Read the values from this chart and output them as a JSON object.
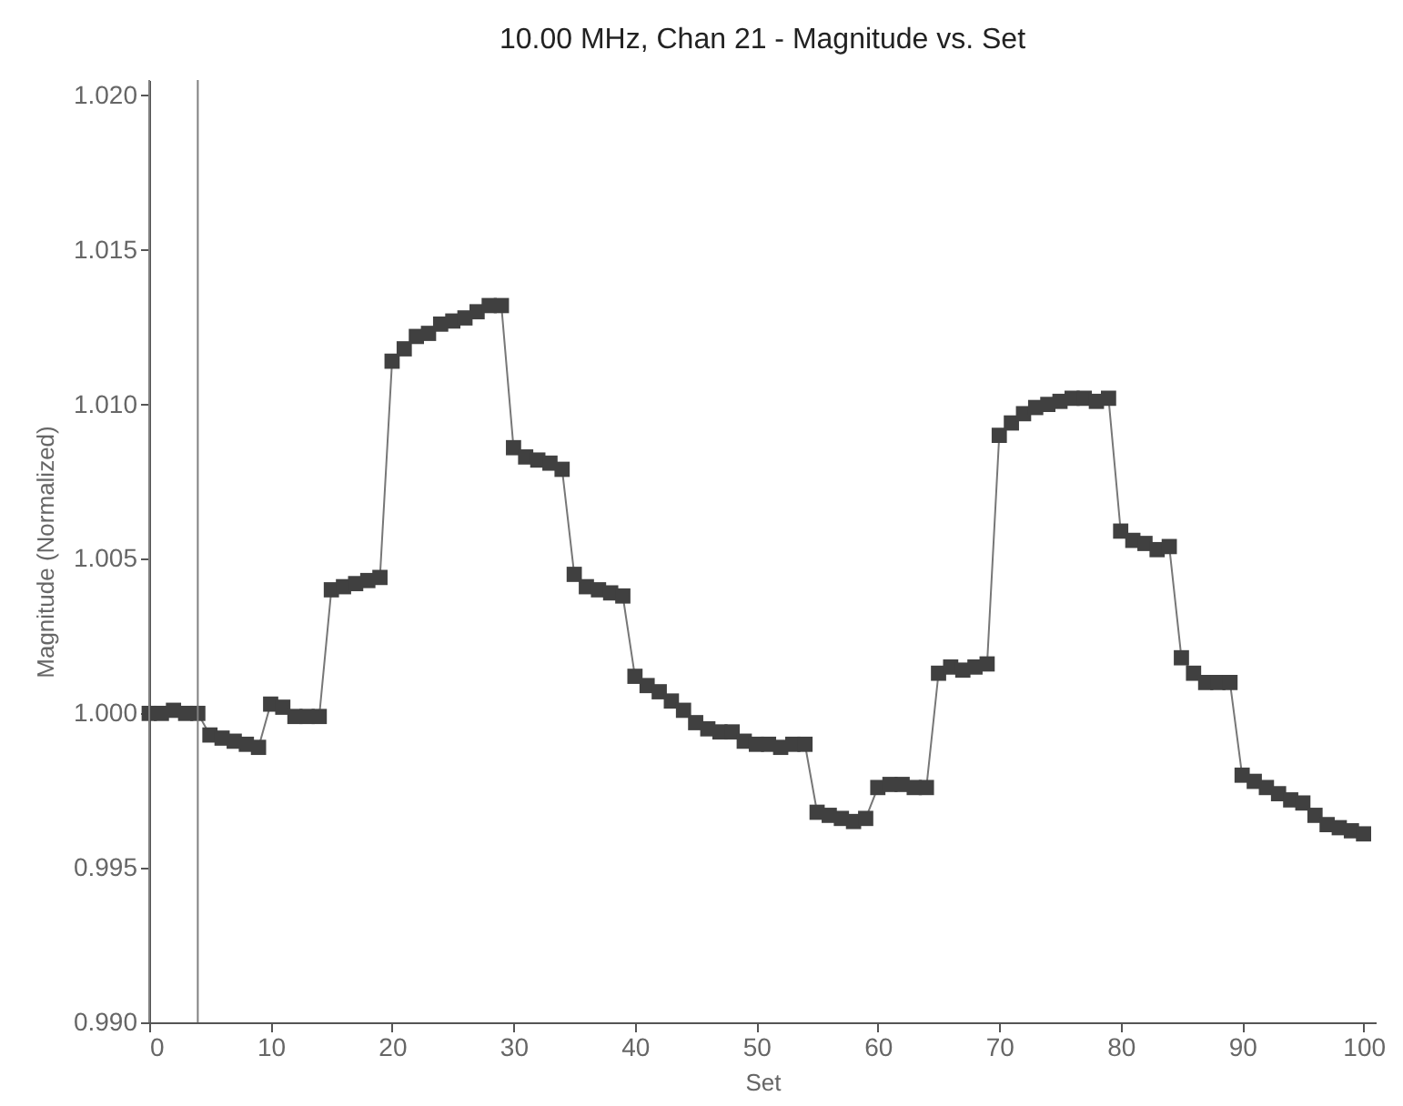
{
  "chart_data": {
    "type": "line",
    "title": "10.00 MHz, Chan 21 - Magnitude vs. Set",
    "xlabel": "Set",
    "ylabel": "Magnitude (Normalized)",
    "x": [
      0,
      1,
      2,
      3,
      4,
      5,
      6,
      7,
      8,
      9,
      10,
      11,
      12,
      13,
      14,
      15,
      16,
      17,
      18,
      19,
      20,
      21,
      22,
      23,
      24,
      25,
      26,
      27,
      28,
      29,
      30,
      31,
      32,
      33,
      34,
      35,
      36,
      37,
      38,
      39,
      40,
      41,
      42,
      43,
      44,
      45,
      46,
      47,
      48,
      49,
      50,
      51,
      52,
      53,
      54,
      55,
      56,
      57,
      58,
      59,
      60,
      61,
      62,
      63,
      64,
      65,
      66,
      67,
      68,
      69,
      70,
      71,
      72,
      73,
      74,
      75,
      76,
      77,
      78,
      79,
      80,
      81,
      82,
      83,
      84,
      85,
      86,
      87,
      88,
      89,
      90,
      91,
      92,
      93,
      94,
      95,
      96,
      97,
      98,
      99,
      100
    ],
    "series": [
      {
        "color": "#404040",
        "values": [
          1.0,
          1.0,
          1.0001,
          1.0,
          1.0,
          0.9993,
          0.9992,
          0.9991,
          0.999,
          0.9989,
          1.0003,
          1.0002,
          0.9999,
          0.9999,
          0.9999,
          1.004,
          1.0041,
          1.0042,
          1.0043,
          1.0044,
          1.0114,
          1.0118,
          1.0122,
          1.0123,
          1.0126,
          1.0127,
          1.0128,
          1.013,
          1.0132,
          1.0132,
          1.0086,
          1.0083,
          1.0082,
          1.0081,
          1.0079,
          1.0045,
          1.0041,
          1.004,
          1.0039,
          1.0038,
          1.0012,
          1.0009,
          1.0007,
          1.0004,
          1.0001,
          0.9997,
          0.9995,
          0.9994,
          0.9994,
          0.9991,
          0.999,
          0.999,
          0.9989,
          0.999,
          0.999,
          0.9968,
          0.9967,
          0.9966,
          0.9965,
          0.9966,
          0.9976,
          0.9977,
          0.9977,
          0.9976,
          0.9976,
          1.0013,
          1.0015,
          1.0014,
          1.0015,
          1.0016,
          1.009,
          1.0094,
          1.0097,
          1.0099,
          1.01,
          1.0101,
          1.0102,
          1.0102,
          1.0101,
          1.0102,
          1.0059,
          1.0056,
          1.0055,
          1.0053,
          1.0054,
          1.0018,
          1.0013,
          1.001,
          1.001,
          1.001,
          0.998,
          0.9978,
          0.9976,
          0.9974,
          0.9972,
          0.9971,
          0.9967,
          0.9964,
          0.9963,
          0.9962,
          0.9961
        ]
      }
    ],
    "xlim": [
      0,
      101
    ],
    "xticks": [
      0,
      10,
      20,
      30,
      40,
      50,
      60,
      70,
      80,
      90,
      100
    ],
    "ylim": [
      0.99,
      1.0205
    ],
    "yticks": [
      {
        "value": 0.99,
        "label": "0.990"
      },
      0.995,
      {
        "value": 1.0,
        "label": "1.000"
      },
      1.005,
      {
        "value": 1.01,
        "label": "1.010"
      },
      1.015,
      {
        "value": 1.02,
        "label": "1.020"
      }
    ],
    "marker": "square",
    "line_style": "solid",
    "ref_lines": [
      {
        "axis": "x",
        "value": 0,
        "color": "#808080"
      },
      {
        "axis": "x",
        "value": 4,
        "color": "#808080"
      }
    ]
  }
}
